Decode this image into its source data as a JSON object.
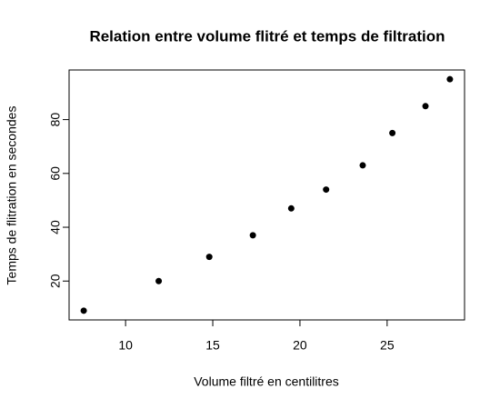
{
  "chart_data": {
    "type": "scatter",
    "title": "Relation entre volume flitré et temps de filtration",
    "x_label": "Volume filtré en centilitres",
    "y_label": "Temps de flitration en secondes",
    "x": [
      7.6,
      11.9,
      14.8,
      17.3,
      19.5,
      21.5,
      23.6,
      25.3,
      27.2,
      28.6
    ],
    "values": [
      9,
      20,
      29,
      37,
      47,
      54,
      63,
      75,
      85,
      95
    ],
    "color": "#000000",
    "xlim": [
      6.76,
      29.44
    ],
    "xticks": [
      10,
      15,
      20,
      25
    ],
    "ylim": [
      5.56,
      98.44
    ],
    "yticks": [
      20,
      40,
      60,
      80
    ]
  }
}
